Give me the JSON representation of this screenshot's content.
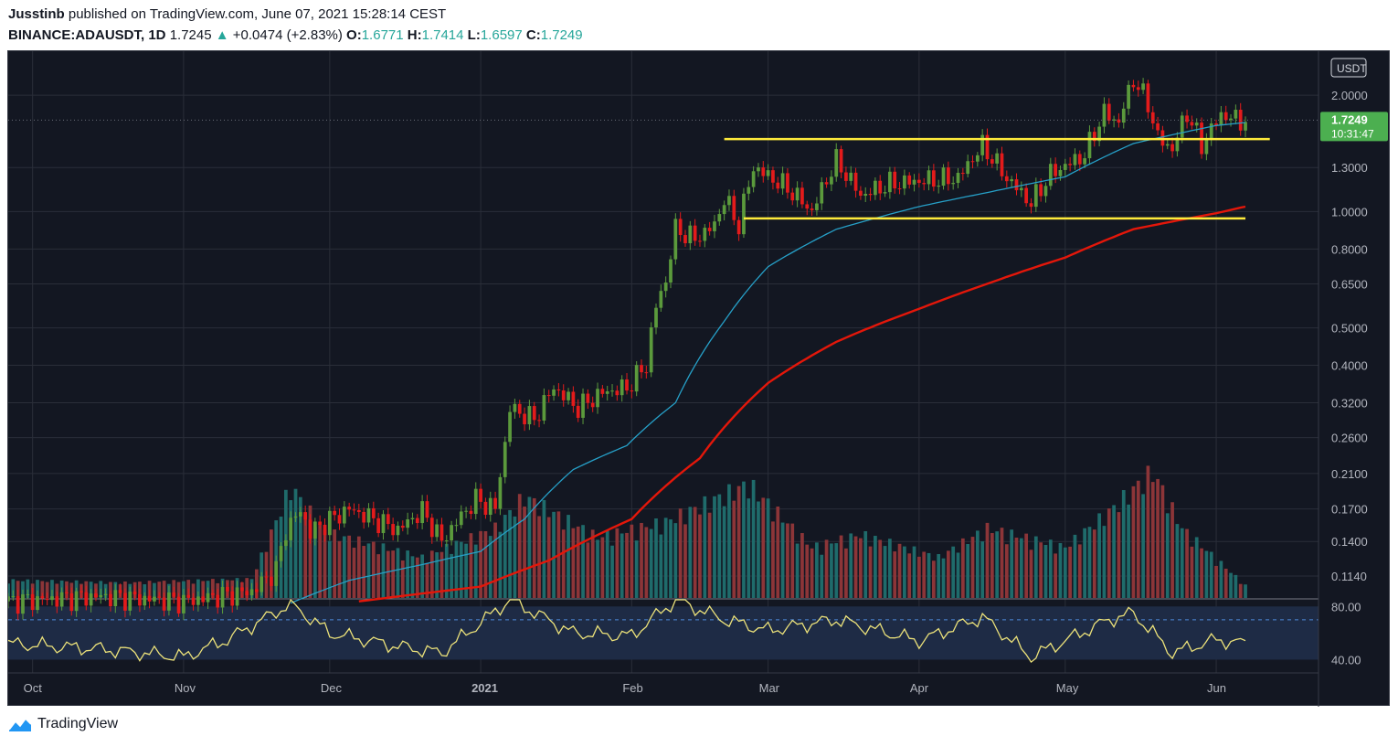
{
  "header": {
    "author": "Jusstinb",
    "published_text": "published on TradingView.com, June 07, 2021 15:28:14 CEST",
    "symbol": "BINANCE:ADAUSDT, 1D",
    "last": "1.7245",
    "change_arrow": "▲",
    "change": "+0.0474 (+2.83%)",
    "open_label": "O:",
    "open": "1.6771",
    "high_label": "H:",
    "high": "1.7414",
    "low_label": "L:",
    "low": "1.6597",
    "close_label": "C:",
    "close": "1.7249"
  },
  "footer": {
    "brand": "TradingView",
    "logo_icon": "tradingview-logo-icon"
  },
  "colors": {
    "background": "#131722",
    "grid": "#2a2e39",
    "up": "#26a69a",
    "candle_up": "#5b9a3c",
    "candle_down": "#e31b1b",
    "volume_up": "#1f6b6b",
    "volume_down": "#8c3538",
    "sma_fast": "#26a0c8",
    "sma_slow": "#e3170a",
    "level": "#ffeb3b",
    "rsi": "#ece27a",
    "rsi_band": "#1e2b45",
    "price_tag": "#4caf50"
  },
  "chart_data": {
    "type": "candlestick",
    "scale": "log",
    "price_axis_unit": "USDT",
    "y_ticks": [
      "2.0000",
      "1.3000",
      "1.0000",
      "0.8000",
      "0.6500",
      "0.5000",
      "0.4000",
      "0.3200",
      "0.2600",
      "0.2100",
      "0.1700",
      "0.1400",
      "0.1140"
    ],
    "y_tick_values": [
      2.0,
      1.3,
      1.0,
      0.8,
      0.65,
      0.5,
      0.4,
      0.32,
      0.26,
      0.21,
      0.17,
      0.14,
      0.114
    ],
    "ylim": [
      0.1,
      2.6
    ],
    "x_ticks": [
      "Oct",
      "Nov",
      "Dec",
      "2021",
      "Feb",
      "Mar",
      "Apr",
      "May",
      "Jun"
    ],
    "x_tick_dates": [
      "2020-10-01",
      "2020-11-01",
      "2020-12-01",
      "2021-01-01",
      "2021-02-01",
      "2021-03-01",
      "2021-04-01",
      "2021-05-01",
      "2021-06-01"
    ],
    "xlim": [
      "2020-09-26",
      "2021-06-22"
    ],
    "last_price_label": "1.7249",
    "countdown_label": "10:31:47",
    "levels": [
      {
        "value": 1.54,
        "from": "2021-02-20",
        "to": "2021-06-12"
      },
      {
        "value": 0.96,
        "from": "2021-02-24",
        "to": "2021-06-07"
      }
    ],
    "price_path": [
      [
        "2020-09-26",
        0.098
      ],
      [
        "2020-10-15",
        0.101
      ],
      [
        "2020-11-01",
        0.098
      ],
      [
        "2020-11-15",
        0.104
      ],
      [
        "2020-11-20",
        0.118
      ],
      [
        "2020-11-22",
        0.15
      ],
      [
        "2020-11-25",
        0.168
      ],
      [
        "2020-11-27",
        0.148
      ],
      [
        "2020-12-05",
        0.17
      ],
      [
        "2020-12-15",
        0.15
      ],
      [
        "2020-12-20",
        0.168
      ],
      [
        "2020-12-24",
        0.14
      ],
      [
        "2020-12-31",
        0.18
      ],
      [
        "2021-01-04",
        0.17
      ],
      [
        "2021-01-06",
        0.25
      ],
      [
        "2021-01-07",
        0.31
      ],
      [
        "2021-01-12",
        0.29
      ],
      [
        "2021-01-16",
        0.35
      ],
      [
        "2021-01-21",
        0.31
      ],
      [
        "2021-01-26",
        0.34
      ],
      [
        "2021-01-31",
        0.35
      ],
      [
        "2021-02-04",
        0.4
      ],
      [
        "2021-02-06",
        0.57
      ],
      [
        "2021-02-08",
        0.66
      ],
      [
        "2021-02-10",
        0.9
      ],
      [
        "2021-02-14",
        0.85
      ],
      [
        "2021-02-18",
        0.92
      ],
      [
        "2021-02-20",
        1.08
      ],
      [
        "2021-02-23",
        0.92
      ],
      [
        "2021-02-26",
        1.3
      ],
      [
        "2021-03-05",
        1.15
      ],
      [
        "2021-03-10",
        1.0
      ],
      [
        "2021-03-15",
        1.35
      ],
      [
        "2021-03-20",
        1.1
      ],
      [
        "2021-03-26",
        1.18
      ],
      [
        "2021-04-01",
        1.2
      ],
      [
        "2021-04-09",
        1.22
      ],
      [
        "2021-04-14",
        1.48
      ],
      [
        "2021-04-19",
        1.22
      ],
      [
        "2021-04-24",
        1.05
      ],
      [
        "2021-04-28",
        1.25
      ],
      [
        "2021-05-05",
        1.4
      ],
      [
        "2021-05-09",
        1.8
      ],
      [
        "2021-05-12",
        1.7
      ],
      [
        "2021-05-15",
        2.2
      ],
      [
        "2021-05-18",
        1.9
      ],
      [
        "2021-05-20",
        1.55
      ],
      [
        "2021-05-23",
        1.45
      ],
      [
        "2021-05-26",
        1.8
      ],
      [
        "2021-05-29",
        1.48
      ],
      [
        "2021-06-02",
        1.78
      ],
      [
        "2021-06-06",
        1.72
      ],
      [
        "2021-06-07",
        1.725
      ]
    ],
    "sma_fast_path": [
      [
        "2020-11-23",
        0.097
      ],
      [
        "2020-12-05",
        0.111
      ],
      [
        "2020-12-20",
        0.122
      ],
      [
        "2021-01-01",
        0.132
      ],
      [
        "2021-01-10",
        0.16
      ],
      [
        "2021-01-20",
        0.215
      ],
      [
        "2021-01-31",
        0.248
      ],
      [
        "2021-02-10",
        0.32
      ],
      [
        "2021-02-20",
        0.52
      ],
      [
        "2021-03-01",
        0.72
      ],
      [
        "2021-03-15",
        0.9
      ],
      [
        "2021-04-01",
        1.03
      ],
      [
        "2021-04-15",
        1.12
      ],
      [
        "2021-05-01",
        1.23
      ],
      [
        "2021-05-15",
        1.5
      ],
      [
        "2021-06-01",
        1.67
      ],
      [
        "2021-06-07",
        1.7
      ]
    ],
    "sma_slow_path": [
      [
        "2020-12-07",
        0.098
      ],
      [
        "2021-01-01",
        0.107
      ],
      [
        "2021-01-15",
        0.125
      ],
      [
        "2021-02-01",
        0.16
      ],
      [
        "2021-02-15",
        0.23
      ],
      [
        "2021-03-01",
        0.36
      ],
      [
        "2021-03-15",
        0.46
      ],
      [
        "2021-04-01",
        0.56
      ],
      [
        "2021-04-15",
        0.65
      ],
      [
        "2021-05-01",
        0.76
      ],
      [
        "2021-05-15",
        0.9
      ],
      [
        "2021-06-01",
        0.99
      ],
      [
        "2021-06-07",
        1.03
      ]
    ],
    "volume_path": [
      [
        "2020-09-26",
        0.14
      ],
      [
        "2020-10-20",
        0.12
      ],
      [
        "2020-11-15",
        0.15
      ],
      [
        "2020-11-23",
        0.88
      ],
      [
        "2020-11-30",
        0.52
      ],
      [
        "2020-12-20",
        0.32
      ],
      [
        "2021-01-04",
        0.55
      ],
      [
        "2021-01-10",
        0.8
      ],
      [
        "2021-01-25",
        0.48
      ],
      [
        "2021-02-08",
        0.6
      ],
      [
        "2021-02-25",
        0.9
      ],
      [
        "2021-03-10",
        0.4
      ],
      [
        "2021-03-20",
        0.5
      ],
      [
        "2021-04-05",
        0.32
      ],
      [
        "2021-04-15",
        0.55
      ],
      [
        "2021-05-01",
        0.4
      ],
      [
        "2021-05-10",
        0.68
      ],
      [
        "2021-05-19",
        1.0
      ],
      [
        "2021-05-25",
        0.55
      ],
      [
        "2021-06-07",
        0.1
      ]
    ],
    "rsi": {
      "ticks": [
        "80.00",
        "40.00"
      ],
      "tick_values": [
        80,
        40
      ],
      "ylim": [
        30,
        85
      ],
      "path": [
        [
          "2020-09-26",
          52
        ],
        [
          "2020-10-15",
          48
        ],
        [
          "2020-11-01",
          42
        ],
        [
          "2020-11-10",
          55
        ],
        [
          "2020-11-23",
          82
        ],
        [
          "2020-12-01",
          60
        ],
        [
          "2020-12-15",
          50
        ],
        [
          "2020-12-24",
          45
        ],
        [
          "2021-01-07",
          85
        ],
        [
          "2021-01-20",
          60
        ],
        [
          "2021-02-01",
          58
        ],
        [
          "2021-02-10",
          85
        ],
        [
          "2021-02-20",
          70
        ],
        [
          "2021-03-01",
          62
        ],
        [
          "2021-03-15",
          70
        ],
        [
          "2021-04-01",
          54
        ],
        [
          "2021-04-14",
          72
        ],
        [
          "2021-04-24",
          42
        ],
        [
          "2021-05-10",
          70
        ],
        [
          "2021-05-15",
          75
        ],
        [
          "2021-05-23",
          45
        ],
        [
          "2021-06-01",
          55
        ],
        [
          "2021-06-07",
          52
        ]
      ]
    }
  }
}
